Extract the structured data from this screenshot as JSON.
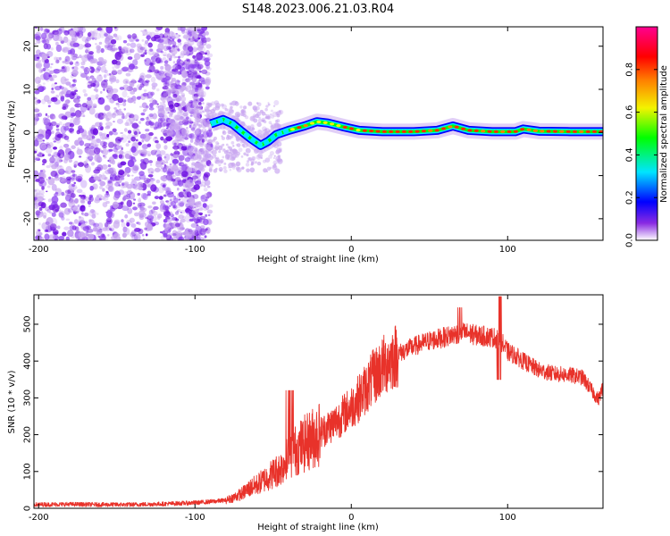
{
  "title": "S148.2023.006.21.03.R04",
  "colors": {
    "snr_line": "#e8322a",
    "scatter_low": "#c9a7f0",
    "scatter_mid": "#8a3ff0",
    "scatter_high": "#6a0ae0"
  },
  "chart_data": [
    {
      "type": "heatmap",
      "xlabel": "Height of straight line (km)",
      "ylabel": "Frequency (Hz)",
      "xlim": [
        -203,
        161
      ],
      "ylim": [
        -25,
        24.5
      ],
      "xticks": [
        -200,
        -100,
        0,
        100
      ],
      "yticks": [
        -20,
        -10,
        0,
        10,
        20
      ],
      "colorbar": {
        "label": "Normalized spectral amplitude",
        "range": [
          0.0,
          1.0
        ],
        "ticks": [
          0.0,
          0.2,
          0.4,
          0.6,
          0.8
        ],
        "tick_labels": [
          "0.0",
          "0.2",
          "0.4",
          "0.6",
          "0.8"
        ],
        "colormap": [
          "#ffffff",
          "#8a2be2",
          "#0000ff",
          "#00e5ff",
          "#00ff00",
          "#f3f300",
          "#ff7f00",
          "#ff0000",
          "#ff0090"
        ]
      },
      "ridge": [
        {
          "x": -90,
          "y": 2.0
        },
        {
          "x": -82,
          "y": 3.0
        },
        {
          "x": -76,
          "y": 2.0
        },
        {
          "x": -70,
          "y": 0.2
        },
        {
          "x": -64,
          "y": -1.5
        },
        {
          "x": -58,
          "y": -3.0
        },
        {
          "x": -53,
          "y": -2.0
        },
        {
          "x": -48,
          "y": -0.5
        },
        {
          "x": -40,
          "y": 0.5
        },
        {
          "x": -30,
          "y": 1.5
        },
        {
          "x": -22,
          "y": 2.5
        },
        {
          "x": -15,
          "y": 2.2
        },
        {
          "x": -5,
          "y": 1.3
        },
        {
          "x": 5,
          "y": 0.5
        },
        {
          "x": 20,
          "y": 0.2
        },
        {
          "x": 40,
          "y": 0.2
        },
        {
          "x": 55,
          "y": 0.5
        },
        {
          "x": 65,
          "y": 1.5
        },
        {
          "x": 75,
          "y": 0.5
        },
        {
          "x": 90,
          "y": 0.2
        },
        {
          "x": 105,
          "y": 0.2
        },
        {
          "x": 110,
          "y": 0.8
        },
        {
          "x": 120,
          "y": 0.3
        },
        {
          "x": 140,
          "y": 0.2
        },
        {
          "x": 161,
          "y": 0.2
        }
      ]
    },
    {
      "type": "line",
      "xlabel": "Height of straight line (km)",
      "ylabel": "SNR (10 * v/v)",
      "xlim": [
        -203,
        161
      ],
      "ylim": [
        0,
        580
      ],
      "xticks": [
        -200,
        -100,
        0,
        100
      ],
      "yticks": [
        0,
        100,
        200,
        300,
        400,
        500
      ],
      "series": [
        {
          "name": "",
          "x": [
            -203,
            -180,
            -160,
            -140,
            -120,
            -100,
            -90,
            -80,
            -75,
            -70,
            -65,
            -60,
            -55,
            -50,
            -45,
            -40,
            -35,
            -30,
            -25,
            -20,
            -15,
            -10,
            -5,
            0,
            5,
            10,
            15,
            20,
            25,
            30,
            40,
            50,
            60,
            70,
            75,
            80,
            90,
            95,
            100,
            105,
            110,
            120,
            130,
            140,
            148,
            153,
            158,
            161
          ],
          "y": [
            10,
            11,
            10,
            10,
            12,
            15,
            18,
            22,
            30,
            40,
            55,
            65,
            80,
            95,
            110,
            140,
            160,
            175,
            190,
            205,
            220,
            235,
            255,
            275,
            300,
            330,
            360,
            385,
            405,
            420,
            440,
            455,
            465,
            478,
            475,
            470,
            465,
            460,
            425,
            415,
            400,
            375,
            365,
            362,
            355,
            325,
            295,
            330
          ]
        }
      ]
    }
  ]
}
